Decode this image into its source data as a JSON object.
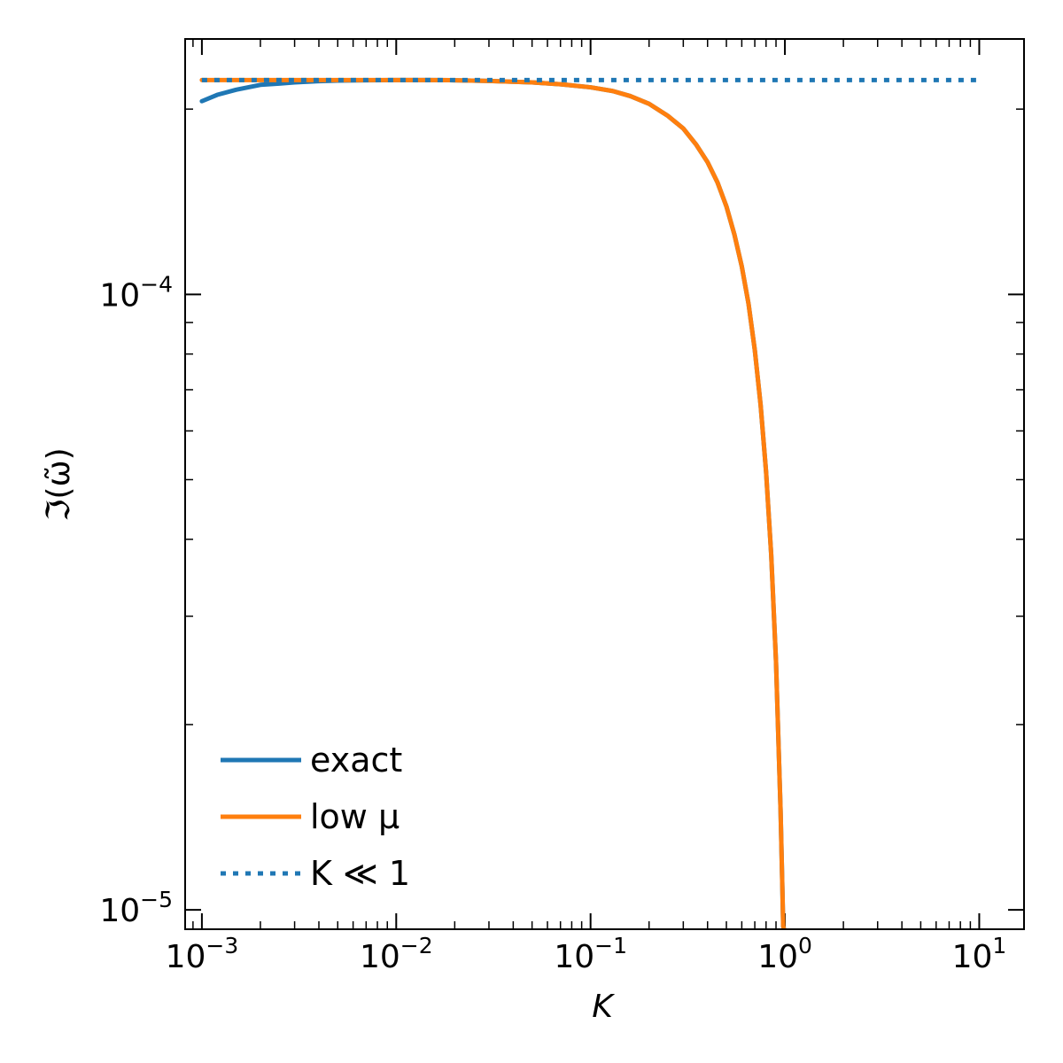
{
  "chart_data": {
    "type": "line",
    "title": "",
    "xlabel": "K",
    "ylabel": "ℑ(ω̃)",
    "xscale": "log",
    "yscale": "log",
    "xlim": [
      0.00082,
      17.0
    ],
    "ylim": [
      9.3e-06,
      0.00026
    ],
    "grid": false,
    "legend_position": "lower-left",
    "x_ticks": [
      {
        "value": 0.001,
        "base": "10",
        "exp": "−3"
      },
      {
        "value": 0.01,
        "base": "10",
        "exp": "−2"
      },
      {
        "value": 0.1,
        "base": "10",
        "exp": "−1"
      },
      {
        "value": 1,
        "base": "10",
        "exp": "0"
      },
      {
        "value": 10,
        "base": "10",
        "exp": "1"
      }
    ],
    "y_ticks": [
      {
        "value": 0.0001,
        "base": "10",
        "exp": "−4"
      },
      {
        "value": 1e-05,
        "base": "10",
        "exp": "−5"
      }
    ],
    "series": [
      {
        "name": "exact",
        "color": "#1f77b4",
        "style": "solid",
        "x": [
          0.001,
          0.0012,
          0.0015,
          0.002,
          0.0025,
          0.003,
          0.004,
          0.005,
          0.007,
          0.01,
          0.015,
          0.02,
          0.03,
          0.05,
          0.07,
          0.1,
          0.13,
          0.16,
          0.2,
          0.25,
          0.3,
          0.35,
          0.4,
          0.45,
          0.5,
          0.55,
          0.6,
          0.65,
          0.7,
          0.75,
          0.8,
          0.85,
          0.9,
          0.95,
          0.97,
          0.98,
          0.99
        ],
        "y": [
          0.000206,
          0.000211,
          0.000215,
          0.000219,
          0.00022,
          0.000221,
          0.000222,
          0.0002225,
          0.0002228,
          0.000223,
          0.000223,
          0.0002228,
          0.0002222,
          0.000221,
          0.0002195,
          0.000217,
          0.000214,
          0.00021,
          0.000204,
          0.000195,
          0.000186,
          0.000175,
          0.000164,
          0.000152,
          0.000139,
          0.000125,
          0.000111,
          9.65e-05,
          8.12e-05,
          6.61e-05,
          5.15e-05,
          3.78e-05,
          2.53e-05,
          1.45e-05,
          1.09e-05,
          9.4e-06,
          9.3e-06
        ]
      },
      {
        "name": "low μ",
        "color": "#ff7f0e",
        "style": "solid",
        "x": [
          0.001,
          0.0015,
          0.002,
          0.003,
          0.005,
          0.007,
          0.01,
          0.015,
          0.02,
          0.03,
          0.05,
          0.07,
          0.1,
          0.13,
          0.16,
          0.2,
          0.25,
          0.3,
          0.35,
          0.4,
          0.45,
          0.5,
          0.55,
          0.6,
          0.65,
          0.7,
          0.75,
          0.8,
          0.85,
          0.9,
          0.95,
          0.97,
          0.98,
          0.99
        ],
        "y": [
          0.000223,
          0.000223,
          0.000223,
          0.000223,
          0.000223,
          0.000223,
          0.000223,
          0.000223,
          0.0002228,
          0.0002222,
          0.000221,
          0.0002195,
          0.000217,
          0.000214,
          0.00021,
          0.000204,
          0.000195,
          0.000186,
          0.000175,
          0.000164,
          0.000152,
          0.000139,
          0.000125,
          0.000111,
          9.65e-05,
          8.12e-05,
          6.61e-05,
          5.15e-05,
          3.78e-05,
          2.53e-05,
          1.45e-05,
          1.09e-05,
          9.4e-06,
          9.3e-06
        ]
      },
      {
        "name": "K ≪ 1",
        "color": "#1f77b4",
        "style": "dotted",
        "x": [
          0.001,
          10
        ],
        "y": [
          0.000223,
          0.000223
        ]
      }
    ]
  }
}
